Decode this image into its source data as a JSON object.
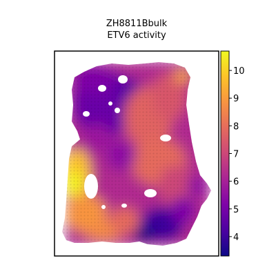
{
  "chart_data": {
    "type": "heatmap",
    "title_lines": [
      "ZH8811Bbulk",
      "ETV6 activity"
    ],
    "colormap": "plasma",
    "value_range": [
      3.3,
      10.7
    ],
    "colorbar_ticks": [
      4,
      5,
      6,
      7,
      8,
      9,
      10
    ],
    "axes_ticks_visible": false,
    "grid": false
  }
}
